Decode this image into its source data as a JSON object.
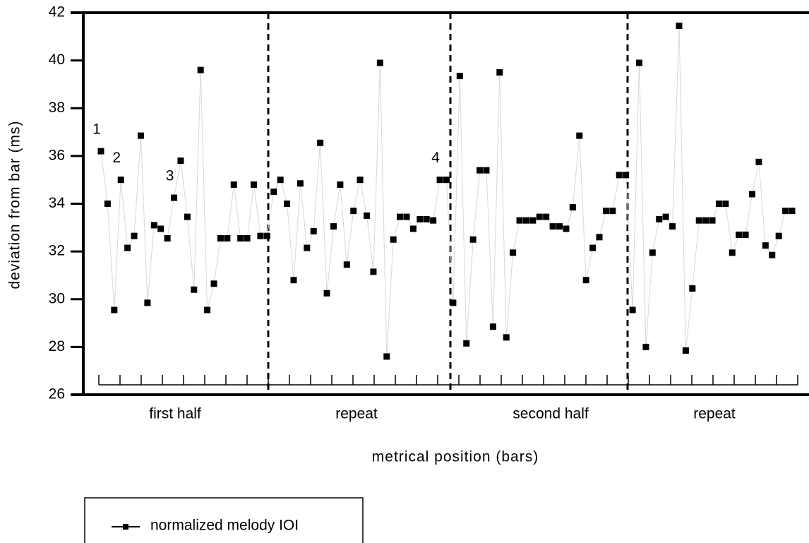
{
  "chart_data": {
    "type": "line",
    "ylabel": "deviation from bar (ms)",
    "xlabel": "metrical position (bars)",
    "section_labels": [
      "first half",
      "repeat",
      "second half",
      "repeat"
    ],
    "ylim": [
      26,
      42
    ],
    "yticks": [
      26,
      28,
      30,
      32,
      34,
      36,
      38,
      40,
      42
    ],
    "series": [
      {
        "name": "normalized melody IOI",
        "color": "#000000",
        "values": [
          36.2,
          34.0,
          29.55,
          35.0,
          32.15,
          32.65,
          36.85,
          29.85,
          33.1,
          32.95,
          32.55,
          34.25,
          35.8,
          33.45,
          30.4,
          39.6,
          29.55,
          30.65,
          32.55,
          32.55,
          34.8,
          32.55,
          32.55,
          34.8,
          32.65,
          32.65,
          34.5,
          35.0,
          34.0,
          30.8,
          34.85,
          32.15,
          32.85,
          36.55,
          30.25,
          33.05,
          34.8,
          31.45,
          33.7,
          35.0,
          33.5,
          31.15,
          39.9,
          27.6,
          32.5,
          33.45,
          33.45,
          32.95,
          33.35,
          33.35,
          33.3,
          35.0,
          35.0,
          29.85,
          39.35,
          28.15,
          32.5,
          35.4,
          35.4,
          28.85,
          39.5,
          28.4,
          31.95,
          33.3,
          33.3,
          33.3,
          33.45,
          33.45,
          33.05,
          33.05,
          32.95,
          33.85,
          36.85,
          30.8,
          32.15,
          32.6,
          33.7,
          33.7,
          35.2,
          35.2,
          29.55,
          39.9,
          28.0,
          31.95,
          33.35,
          33.45,
          33.05,
          41.45,
          27.85,
          30.45,
          33.3,
          33.3,
          33.3,
          34.0,
          34.0,
          31.95,
          32.7,
          32.7,
          34.4,
          35.75,
          32.25,
          31.85,
          32.65,
          33.7,
          33.7
        ],
        "point_labels": [
          "1",
          null,
          null,
          "2",
          null,
          null,
          null,
          null,
          null,
          null,
          null,
          "3",
          null,
          null,
          null,
          null,
          null,
          null,
          null,
          null,
          null,
          null,
          null,
          null,
          null,
          null,
          null,
          null,
          null,
          null,
          null,
          null,
          null,
          null,
          null,
          null,
          null,
          null,
          null,
          null,
          null,
          null,
          null,
          null,
          null,
          null,
          null,
          null,
          null,
          null,
          null,
          "4",
          null,
          null,
          null,
          null,
          null,
          null,
          null,
          null,
          null,
          null,
          null,
          null,
          null,
          null,
          null,
          null,
          null,
          null,
          null,
          null,
          null,
          null,
          null,
          null,
          null,
          null,
          null,
          null,
          null,
          null,
          null,
          null,
          null,
          null,
          null,
          null,
          null,
          null,
          null,
          null,
          null,
          null,
          null,
          null,
          null,
          null,
          null,
          null,
          null,
          null,
          null,
          null,
          null
        ]
      }
    ],
    "legend": "bottom-left"
  }
}
